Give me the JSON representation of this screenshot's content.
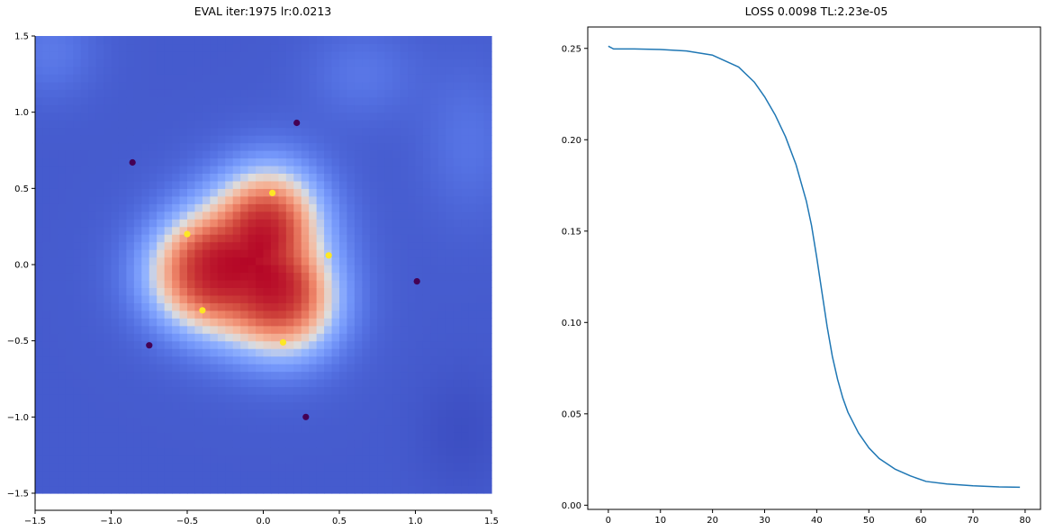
{
  "chart_data": [
    {
      "type": "heatmap",
      "title": "EVAL iter:1975 lr:0.0213",
      "xlabel": "",
      "ylabel": "",
      "xlim": [
        -1.5,
        1.5
      ],
      "ylim": [
        -1.5,
        1.5
      ],
      "grid": false,
      "colormap": "coolwarm",
      "xticks": [
        "−1.5",
        "−1.0",
        "−0.5",
        "0.0",
        "0.5",
        "1.0",
        "1.5"
      ],
      "yticks": [
        "−1.5",
        "−1.0",
        "−0.5",
        "0.0",
        "0.5",
        "1.0",
        "1.5"
      ],
      "field_description": "decision field, high (red) inside a rounded triangular region around the origin, low (blue) outside",
      "series": [
        {
          "class": 1,
          "color": "#fde725",
          "points": [
            [
              0.06,
              0.47
            ],
            [
              -0.5,
              0.2
            ],
            [
              0.43,
              0.06
            ],
            [
              -0.4,
              -0.3
            ],
            [
              0.13,
              -0.51
            ]
          ]
        },
        {
          "class": 0,
          "color": "#440154",
          "points": [
            [
              0.22,
              0.93
            ],
            [
              -0.86,
              0.67
            ],
            [
              1.01,
              -0.11
            ],
            [
              -0.75,
              -0.53
            ],
            [
              0.28,
              -1.0
            ]
          ]
        }
      ]
    },
    {
      "type": "line",
      "title": "LOSS 0.0098 TL:2.23e-05",
      "xlabel": "",
      "ylabel": "",
      "xlim": [
        -3.95,
        82.95
      ],
      "ylim": [
        -0.0023,
        0.2617
      ],
      "grid": false,
      "xticks": [
        "0",
        "10",
        "20",
        "30",
        "40",
        "50",
        "60",
        "70",
        "80"
      ],
      "yticks": [
        "0.00",
        "0.05",
        "0.10",
        "0.15",
        "0.20",
        "0.25"
      ],
      "series": [
        {
          "color": "#1f77b4",
          "x": [
            0,
            1,
            5,
            10,
            15,
            20,
            25,
            28,
            30,
            32,
            34,
            36,
            38,
            39,
            40,
            41,
            42,
            43,
            44,
            45,
            46,
            48,
            50,
            52,
            55,
            58,
            61,
            65,
            70,
            75,
            79
          ],
          "y": [
            0.2512,
            0.2497,
            0.2497,
            0.2494,
            0.2486,
            0.2463,
            0.2398,
            0.2316,
            0.2235,
            0.2137,
            0.2017,
            0.1866,
            0.1665,
            0.1531,
            0.1356,
            0.1166,
            0.0977,
            0.0814,
            0.0689,
            0.0587,
            0.0508,
            0.0396,
            0.0314,
            0.0255,
            0.0198,
            0.016,
            0.013,
            0.0116,
            0.0106,
            0.01,
            0.0098
          ]
        }
      ]
    }
  ]
}
